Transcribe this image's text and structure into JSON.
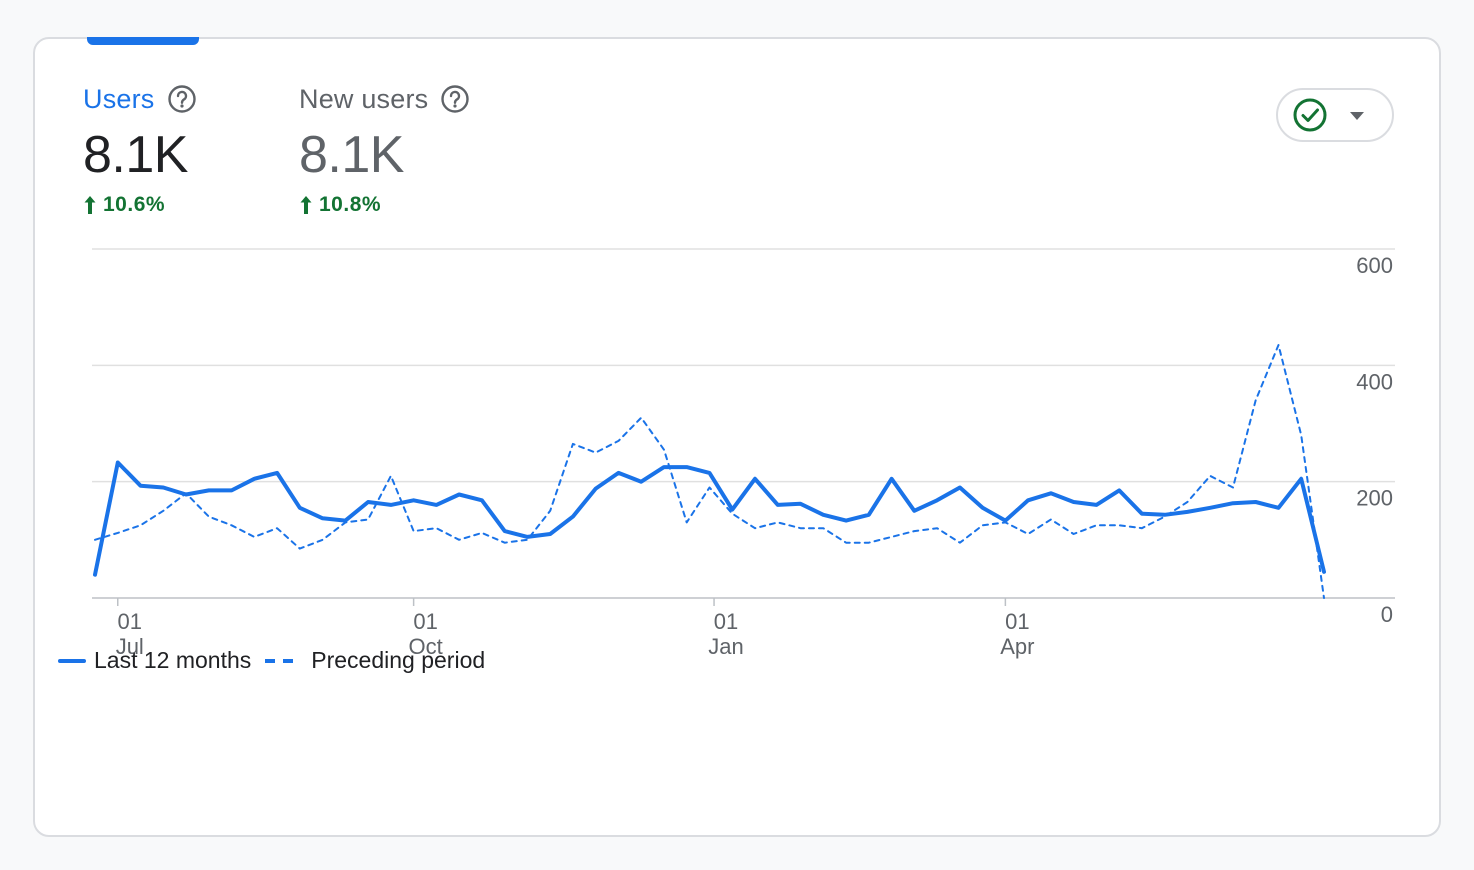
{
  "metrics": {
    "users": {
      "label": "Users",
      "value": "8.1K",
      "delta": "10.6%",
      "help_icon": "help-circle-icon",
      "delta_icon": "arrow-up-icon"
    },
    "new_users": {
      "label": "New users",
      "value": "8.1K",
      "delta": "10.8%",
      "help_icon": "help-circle-icon",
      "delta_icon": "arrow-up-icon"
    }
  },
  "compare_toggle": {
    "icon": "check-circle-icon",
    "dropdown_icon": "caret-down-icon"
  },
  "colors": {
    "accent": "#1a73e8",
    "positive": "#137333",
    "label_gray": "#5f6368",
    "gridline": "#e0e0e0"
  },
  "legend": {
    "current": "Last 12 months",
    "previous": "Preceding period"
  },
  "chart_data": {
    "type": "line",
    "x_ticks": [
      {
        "day": "01",
        "month": "Jul",
        "index": 1
      },
      {
        "day": "01",
        "month": "Oct",
        "index": 14
      },
      {
        "day": "01",
        "month": "Jan",
        "index": 27.2
      },
      {
        "day": "01",
        "month": "Apr",
        "index": 40
      }
    ],
    "y_ticks": [
      "600",
      "400",
      "200",
      "0"
    ],
    "ylim": [
      0,
      600
    ],
    "grid": true,
    "legend_position": "bottom-left",
    "series": [
      {
        "name": "Last 12 months",
        "style": "solid",
        "values": [
          40,
          233,
          193,
          190,
          178,
          185,
          185,
          205,
          215,
          155,
          137,
          133,
          165,
          160,
          168,
          160,
          178,
          168,
          115,
          105,
          110,
          140,
          188,
          215,
          200,
          225,
          225,
          215,
          152,
          205,
          160,
          162,
          143,
          133,
          143,
          205,
          150,
          168,
          190,
          155,
          133,
          168,
          180,
          165,
          160,
          185,
          145,
          143,
          148,
          155,
          163,
          165,
          155,
          205,
          45
        ]
      },
      {
        "name": "Preceding period",
        "style": "dashed",
        "values": [
          100,
          112,
          125,
          150,
          180,
          140,
          125,
          105,
          120,
          85,
          100,
          130,
          135,
          210,
          115,
          120,
          100,
          112,
          95,
          100,
          150,
          265,
          250,
          270,
          310,
          255,
          130,
          190,
          145,
          120,
          130,
          120,
          120,
          95,
          95,
          105,
          115,
          120,
          95,
          125,
          130,
          110,
          135,
          110,
          125,
          125,
          120,
          140,
          165,
          210,
          190,
          340,
          435,
          280,
          0
        ]
      }
    ]
  }
}
